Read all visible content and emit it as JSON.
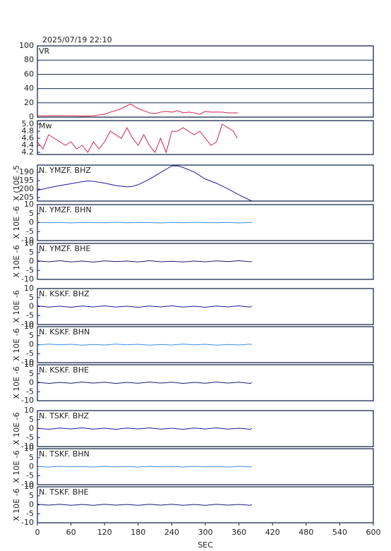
{
  "chart_data": [
    {
      "type": "line",
      "title": "2025/07/19 22:10",
      "label": "VR",
      "color": "#d0204a",
      "grid": true,
      "x": [
        0,
        20,
        40,
        60,
        80,
        100,
        110,
        120,
        130,
        140,
        150,
        160,
        165,
        170,
        175,
        180,
        190,
        200,
        210,
        220,
        230,
        240,
        250,
        255,
        260,
        270,
        280,
        290,
        300,
        310,
        320,
        330,
        340,
        350,
        358
      ],
      "values": [
        2,
        2,
        2,
        2,
        1.5,
        2,
        3,
        4,
        7,
        9,
        12,
        16,
        18,
        17,
        14,
        12,
        9,
        6,
        5,
        7,
        8,
        7,
        9,
        8,
        6,
        7,
        6,
        4,
        8,
        7,
        7,
        7,
        6,
        6,
        6
      ],
      "xlim": [
        0,
        600
      ],
      "ylim": [
        0,
        100
      ],
      "yticks": [
        0,
        20,
        40,
        60,
        80,
        100
      ]
    },
    {
      "type": "line",
      "label": "Mw",
      "color": "#d0204a",
      "x": [
        0,
        10,
        20,
        30,
        40,
        50,
        60,
        70,
        80,
        90,
        100,
        110,
        120,
        130,
        140,
        150,
        160,
        170,
        180,
        190,
        200,
        210,
        220,
        230,
        240,
        250,
        260,
        270,
        280,
        290,
        300,
        310,
        320,
        330,
        340,
        350,
        357
      ],
      "values": [
        4.5,
        4.3,
        4.7,
        4.6,
        4.5,
        4.4,
        4.5,
        4.3,
        4.4,
        4.2,
        4.5,
        4.3,
        4.5,
        4.8,
        4.7,
        4.6,
        4.9,
        4.6,
        4.4,
        4.7,
        4.4,
        4.2,
        4.6,
        4.2,
        4.8,
        4.8,
        4.9,
        4.8,
        4.7,
        4.8,
        4.6,
        4.4,
        4.5,
        5.0,
        4.9,
        4.8,
        4.6
      ],
      "xlim": [
        0,
        600
      ],
      "ylim": [
        4.14,
        5.1
      ],
      "yticks": [
        4.2,
        4.4,
        4.6,
        4.8,
        {
          "value": 5,
          "label": "5.0"
        }
      ]
    },
    {
      "type": "line",
      "label": "N. YMZF. BHZ",
      "ylabel": "X (10E -5",
      "color": "#1a1aa0",
      "x": [
        0,
        20,
        40,
        60,
        80,
        90,
        100,
        120,
        140,
        160,
        170,
        180,
        200,
        220,
        240,
        250,
        260,
        280,
        300,
        320,
        340,
        360,
        383
      ],
      "values": [
        200.8,
        199.2,
        197.9,
        196.8,
        195.6,
        195.2,
        195.4,
        196.5,
        197.9,
        198.7,
        198.4,
        197.4,
        194.2,
        190.2,
        186.3,
        186.2,
        187.2,
        189.9,
        194.1,
        196.6,
        199.8,
        203.4,
        207.1
      ],
      "xlim": [
        0,
        600
      ],
      "ylim": [
        207.1,
        185.8
      ],
      "yticks": [
        190,
        195,
        200,
        205
      ]
    },
    {
      "type": "line",
      "label": "N. YMZF. BHN",
      "ylabel": "X 10E -6",
      "color": "#3a8ee6",
      "x": [
        0,
        20,
        40,
        60,
        80,
        100,
        120,
        140,
        160,
        180,
        200,
        220,
        240,
        260,
        280,
        300,
        320,
        340,
        360,
        380,
        383
      ],
      "values": [
        0.2,
        -0.1,
        0.1,
        -0.2,
        0.1,
        0,
        -0.1,
        0.2,
        -0.1,
        0.1,
        0,
        -0.2,
        0.1,
        -0.1,
        0.2,
        0,
        -0.1,
        0.1,
        -0.2,
        0.1,
        0
      ],
      "xlim": [
        0,
        600
      ],
      "ylim": [
        -10,
        10
      ],
      "yticks": [
        -10,
        -5,
        0,
        5,
        10
      ]
    },
    {
      "type": "line",
      "label": "N. YMZF. BHE",
      "ylabel": "X 10E -6",
      "color": "#1a1a70",
      "x": [
        0,
        20,
        40,
        60,
        80,
        100,
        120,
        140,
        160,
        180,
        200,
        220,
        240,
        260,
        280,
        300,
        320,
        340,
        360,
        380,
        383
      ],
      "values": [
        0.3,
        -0.2,
        0.4,
        -0.3,
        0.2,
        -0.4,
        0.3,
        -0.1,
        0.2,
        -0.3,
        0.4,
        -0.2,
        0.1,
        -0.3,
        0.2,
        -0.2,
        0.3,
        -0.1,
        0.4,
        -0.2,
        0.1
      ],
      "xlim": [
        0,
        600
      ],
      "ylim": [
        -10,
        10
      ],
      "yticks": [
        -10,
        -5,
        0,
        5,
        10
      ]
    },
    {
      "type": "line",
      "label": "N. KSKF. BHZ",
      "ylabel": "X 10E -6",
      "color": "#1a1aa0",
      "x": [
        0,
        20,
        40,
        60,
        80,
        100,
        120,
        140,
        160,
        180,
        200,
        220,
        240,
        260,
        280,
        300,
        320,
        340,
        360,
        380,
        383
      ],
      "values": [
        0.4,
        -0.3,
        0.2,
        -0.4,
        0.3,
        -0.2,
        0.4,
        -0.3,
        0.2,
        -0.4,
        0.3,
        -0.2,
        0.4,
        -0.3,
        0.2,
        -0.4,
        0.3,
        -0.2,
        0.4,
        -0.3,
        0.2
      ],
      "xlim": [
        0,
        600
      ],
      "ylim": [
        -10,
        10
      ],
      "yticks": [
        -10,
        -5,
        0,
        5,
        10
      ]
    },
    {
      "type": "line",
      "label": "N. KSKF. BHN",
      "ylabel": "X 10E -6",
      "color": "#3a8ee6",
      "x": [
        0,
        20,
        40,
        60,
        80,
        100,
        120,
        140,
        160,
        180,
        200,
        220,
        240,
        260,
        280,
        300,
        320,
        340,
        360,
        380,
        383
      ],
      "values": [
        -0.2,
        0.3,
        -0.1,
        0.2,
        -0.3,
        0.1,
        -0.2,
        0.3,
        -0.1,
        0.2,
        -0.3,
        0.1,
        -0.2,
        0.3,
        -0.1,
        0.2,
        -0.3,
        0.1,
        -0.2,
        0.3,
        0
      ],
      "xlim": [
        0,
        600
      ],
      "ylim": [
        -10,
        10
      ],
      "yticks": [
        -10,
        -5,
        0,
        5,
        10
      ]
    },
    {
      "type": "line",
      "label": "N. KSKF. BHE",
      "ylabel": "X 10E -6",
      "color": "#1a1a70",
      "x": [
        0,
        20,
        40,
        60,
        80,
        100,
        120,
        140,
        160,
        180,
        200,
        220,
        240,
        260,
        280,
        300,
        320,
        340,
        360,
        380,
        383
      ],
      "values": [
        0.3,
        -0.4,
        0.2,
        -0.3,
        0.4,
        -0.2,
        0.3,
        -0.4,
        0.2,
        -0.3,
        0.4,
        -0.2,
        0.3,
        -0.4,
        0.2,
        -0.3,
        0.4,
        -0.2,
        0.3,
        -0.4,
        0.2
      ],
      "xlim": [
        0,
        600
      ],
      "ylim": [
        -10,
        10
      ],
      "yticks": [
        -10,
        -5,
        0,
        5,
        10
      ]
    },
    {
      "type": "line",
      "label": "N. TSKF. BHZ",
      "ylabel": "X 10E -6",
      "color": "#1a1aa0",
      "x": [
        0,
        20,
        40,
        60,
        80,
        100,
        120,
        140,
        160,
        180,
        200,
        220,
        240,
        260,
        280,
        300,
        320,
        340,
        360,
        380,
        383
      ],
      "values": [
        0.2,
        -0.4,
        0.3,
        -0.2,
        0.4,
        -0.3,
        0.2,
        -0.4,
        0.3,
        -0.2,
        0.4,
        -0.3,
        0.2,
        -0.4,
        0.3,
        -0.2,
        0.4,
        -0.3,
        0.2,
        -0.4,
        0.1
      ],
      "xlim": [
        0,
        600
      ],
      "ylim": [
        -10,
        10
      ],
      "yticks": [
        -10,
        -5,
        0,
        5,
        10
      ]
    },
    {
      "type": "line",
      "label": "N. TSKF. BHN",
      "ylabel": "X 10E -6",
      "color": "#3a8ee6",
      "x": [
        0,
        20,
        40,
        60,
        80,
        100,
        120,
        140,
        160,
        180,
        200,
        220,
        240,
        260,
        280,
        300,
        320,
        340,
        360,
        380,
        383
      ],
      "values": [
        0.1,
        -0.2,
        0.2,
        -0.1,
        0.1,
        -0.2,
        0.2,
        -0.1,
        0.1,
        -0.2,
        0.2,
        -0.1,
        0.1,
        -0.2,
        0.2,
        -0.1,
        0.1,
        -0.2,
        0.2,
        -0.1,
        0
      ],
      "xlim": [
        0,
        600
      ],
      "ylim": [
        -10,
        10
      ],
      "yticks": [
        -10,
        -5,
        0,
        5,
        10
      ]
    },
    {
      "type": "line",
      "label": "N. TSKF. BHE",
      "ylabel": "X 10E -6",
      "color": "#1a1a70",
      "x": [
        0,
        20,
        40,
        60,
        80,
        100,
        120,
        140,
        160,
        180,
        200,
        220,
        240,
        260,
        280,
        300,
        320,
        340,
        360,
        380,
        383
      ],
      "values": [
        0.3,
        -0.2,
        0.3,
        -0.3,
        0.2,
        -0.3,
        0.3,
        -0.2,
        0.2,
        -0.3,
        0.3,
        -0.2,
        0.3,
        -0.3,
        0.2,
        -0.3,
        0.3,
        -0.2,
        0.2,
        -0.3,
        0.1
      ],
      "xlim": [
        0,
        600
      ],
      "ylim": [
        -10,
        10
      ],
      "yticks": [
        -10,
        -5,
        0,
        5,
        10
      ],
      "xticks": [
        0,
        60,
        120,
        180,
        240,
        300,
        360,
        420,
        480,
        540,
        600
      ],
      "xlabel": "SEC"
    }
  ]
}
